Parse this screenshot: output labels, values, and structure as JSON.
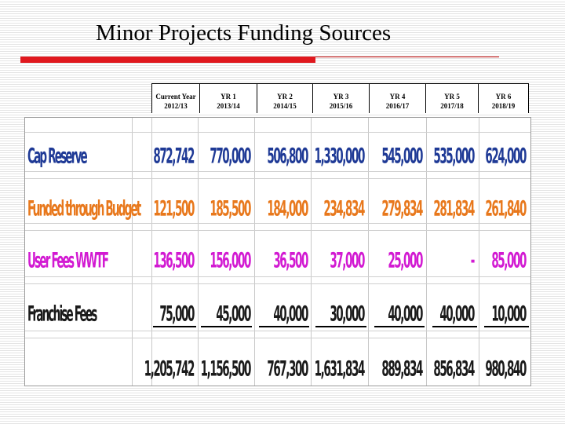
{
  "slide": {
    "title": "Minor Projects Funding Sources"
  },
  "table": {
    "headers": [
      {
        "label": "Current Year",
        "period": "2012/13"
      },
      {
        "label": "YR 1",
        "period": "2013/14"
      },
      {
        "label": "YR 2",
        "period": "2014/15"
      },
      {
        "label": "YR 3",
        "period": "2015/16"
      },
      {
        "label": "YR 4",
        "period": "2016/17"
      },
      {
        "label": "YR 5",
        "period": "2017/18"
      },
      {
        "label": "YR 6",
        "period": "2018/19"
      }
    ],
    "rows": [
      {
        "label": "Cap Reserve",
        "color": "#1f3a96",
        "values": [
          "872,742",
          "770,000",
          "506,800",
          "1,330,000",
          "545,000",
          "535,000",
          "624,000"
        ]
      },
      {
        "label": "Funded through Budget",
        "color": "#e8781c",
        "values": [
          "121,500",
          "185,500",
          "184,000",
          "234,834",
          "279,834",
          "281,834",
          "261,840"
        ]
      },
      {
        "label": "User Fees WWTF",
        "color": "#d21ad2",
        "values": [
          "136,500",
          "156,000",
          "36,500",
          "37,000",
          "25,000",
          "-",
          "85,000"
        ]
      },
      {
        "label": "Franchise Fees",
        "color": "#1a1a1a",
        "values": [
          "75,000",
          "45,000",
          "40,000",
          "30,000",
          "40,000",
          "40,000",
          "10,000"
        ]
      },
      {
        "label": "",
        "color": "#1a1a1a",
        "values": [
          "1,205,742",
          "1,156,500",
          "767,300",
          "1,631,834",
          "889,834",
          "856,834",
          "980,840"
        ]
      }
    ]
  }
}
